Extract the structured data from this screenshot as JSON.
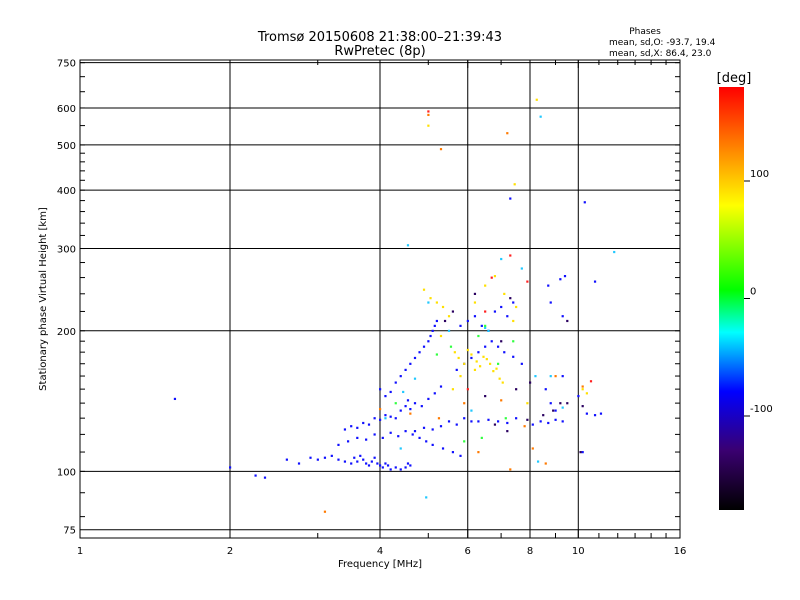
{
  "chart_data": {
    "type": "scatter",
    "title": "Tromsø 20150608 21:38:00–21:39:43",
    "subtitle": "RwPretec (8p)",
    "xlabel": "Frequency [MHz]",
    "ylabel": "Stationary phase Virtual Height [km]",
    "x_scale": "log",
    "y_scale": "log",
    "xlim": [
      1,
      16
    ],
    "ylim": [
      72,
      760
    ],
    "x_ticks": [
      1,
      2,
      4,
      6,
      8,
      10,
      16
    ],
    "y_ticks": [
      75,
      100,
      200,
      300,
      400,
      500,
      600,
      750
    ],
    "grid": true,
    "phase_stats": {
      "heading": "Phases",
      "o_line": "mean, sd,O:  -93.7, 19.4",
      "x_line": "mean, sd,X:   86.4, 23.0"
    },
    "colorbar": {
      "label": "[deg]",
      "range": [
        -180,
        180
      ],
      "ticks": [
        100,
        0,
        -100
      ]
    },
    "series": [
      {
        "color": "#1010ff",
        "phase": -100,
        "points": [
          [
            1.55,
            143
          ],
          [
            2.0,
            102
          ],
          [
            2.25,
            98
          ],
          [
            2.35,
            97
          ],
          [
            2.6,
            106
          ],
          [
            2.75,
            104
          ],
          [
            2.9,
            107
          ],
          [
            3.0,
            106
          ],
          [
            3.1,
            107
          ],
          [
            3.2,
            108
          ],
          [
            3.3,
            106
          ],
          [
            3.4,
            105
          ],
          [
            3.5,
            104
          ],
          [
            3.55,
            107
          ],
          [
            3.6,
            105
          ],
          [
            3.65,
            108
          ],
          [
            3.7,
            106
          ],
          [
            3.75,
            104
          ],
          [
            3.8,
            103
          ],
          [
            3.85,
            105
          ],
          [
            3.9,
            107
          ],
          [
            3.95,
            104
          ],
          [
            4.0,
            103
          ],
          [
            4.05,
            102
          ],
          [
            4.1,
            104
          ],
          [
            4.15,
            103
          ],
          [
            4.2,
            101
          ],
          [
            4.3,
            102
          ],
          [
            4.4,
            101
          ],
          [
            4.5,
            102
          ],
          [
            4.55,
            104
          ],
          [
            4.6,
            103
          ],
          [
            3.4,
            123
          ],
          [
            3.5,
            125
          ],
          [
            3.6,
            124
          ],
          [
            3.7,
            127
          ],
          [
            3.8,
            126
          ],
          [
            3.9,
            130
          ],
          [
            4.0,
            129
          ],
          [
            4.1,
            132
          ],
          [
            4.2,
            131
          ],
          [
            4.3,
            130
          ],
          [
            4.4,
            135
          ],
          [
            4.5,
            138
          ],
          [
            4.6,
            136
          ],
          [
            3.3,
            114
          ],
          [
            3.45,
            116
          ],
          [
            3.6,
            118
          ],
          [
            3.75,
            117
          ],
          [
            3.9,
            120
          ],
          [
            4.05,
            118
          ],
          [
            4.2,
            121
          ],
          [
            4.35,
            119
          ],
          [
            4.5,
            122
          ],
          [
            4.65,
            120
          ],
          [
            4.8,
            118
          ],
          [
            4.95,
            116
          ],
          [
            5.1,
            114
          ],
          [
            4.0,
            150
          ],
          [
            4.1,
            145
          ],
          [
            4.2,
            148
          ],
          [
            4.3,
            155
          ],
          [
            4.4,
            160
          ],
          [
            4.5,
            165
          ],
          [
            4.6,
            170
          ],
          [
            4.7,
            175
          ],
          [
            4.8,
            180
          ],
          [
            4.9,
            185
          ],
          [
            5.0,
            190
          ],
          [
            5.05,
            195
          ],
          [
            5.1,
            200
          ],
          [
            5.15,
            205
          ],
          [
            5.2,
            210
          ],
          [
            4.55,
            142
          ],
          [
            4.7,
            140
          ],
          [
            4.85,
            138
          ],
          [
            5.0,
            143
          ],
          [
            5.15,
            147
          ],
          [
            5.3,
            152
          ],
          [
            4.7,
            122
          ],
          [
            4.9,
            124
          ],
          [
            5.1,
            123
          ],
          [
            5.3,
            125
          ],
          [
            5.5,
            128
          ],
          [
            5.7,
            126
          ],
          [
            5.9,
            130
          ],
          [
            6.1,
            128
          ],
          [
            5.35,
            112
          ],
          [
            5.6,
            110
          ],
          [
            5.8,
            108
          ],
          [
            6.3,
            128
          ],
          [
            6.6,
            129
          ],
          [
            6.9,
            128
          ],
          [
            7.2,
            127
          ],
          [
            7.5,
            130
          ],
          [
            8.1,
            126
          ],
          [
            8.4,
            128
          ],
          [
            8.7,
            127
          ],
          [
            9.0,
            129
          ],
          [
            9.3,
            128
          ],
          [
            10.4,
            133
          ],
          [
            10.8,
            132
          ],
          [
            11.1,
            133
          ],
          [
            5.7,
            165
          ],
          [
            5.9,
            170
          ],
          [
            6.1,
            175
          ],
          [
            6.3,
            180
          ],
          [
            6.5,
            185
          ],
          [
            6.7,
            190
          ],
          [
            6.9,
            185
          ],
          [
            7.1,
            180
          ],
          [
            7.4,
            176
          ],
          [
            7.7,
            170
          ],
          [
            5.8,
            205
          ],
          [
            6.0,
            210
          ],
          [
            6.2,
            215
          ],
          [
            6.4,
            205
          ],
          [
            6.6,
            200
          ],
          [
            6.8,
            220
          ],
          [
            7.0,
            225
          ],
          [
            7.2,
            215
          ],
          [
            7.4,
            230
          ],
          [
            8.6,
            150
          ],
          [
            8.8,
            140
          ],
          [
            9.0,
            135
          ],
          [
            9.3,
            160
          ],
          [
            10.0,
            145
          ],
          [
            10.2,
            110
          ],
          [
            9.2,
            258
          ],
          [
            9.4,
            262
          ],
          [
            7.3,
            384
          ],
          [
            8.7,
            250
          ],
          [
            10.3,
            377
          ],
          [
            10.8,
            255
          ],
          [
            8.8,
            230
          ],
          [
            9.3,
            215
          ]
        ]
      },
      {
        "color": "#2a0060",
        "phase": -160,
        "points": [
          [
            5.4,
            210
          ],
          [
            5.6,
            220
          ],
          [
            6.2,
            240
          ],
          [
            6.5,
            145
          ],
          [
            7.0,
            190
          ],
          [
            7.3,
            235
          ],
          [
            7.5,
            150
          ],
          [
            8.0,
            155
          ],
          [
            8.5,
            132
          ],
          [
            8.9,
            135
          ],
          [
            9.5,
            140
          ],
          [
            10.2,
            138
          ],
          [
            6.8,
            126
          ],
          [
            7.2,
            122
          ],
          [
            7.9,
            129
          ],
          [
            10.1,
            110
          ],
          [
            9.2,
            140
          ],
          [
            9.5,
            210
          ]
        ]
      },
      {
        "color": "#ffe000",
        "phase": 95,
        "points": [
          [
            4.9,
            245
          ],
          [
            5.05,
            235
          ],
          [
            5.2,
            230
          ],
          [
            5.35,
            225
          ],
          [
            5.5,
            215
          ],
          [
            5.65,
            180
          ],
          [
            5.75,
            175
          ],
          [
            5.8,
            160
          ],
          [
            5.9,
            170
          ],
          [
            6.0,
            182
          ],
          [
            6.1,
            178
          ],
          [
            6.25,
            172
          ],
          [
            6.35,
            168
          ],
          [
            6.45,
            176
          ],
          [
            6.55,
            174
          ],
          [
            6.65,
            170
          ],
          [
            6.75,
            164
          ],
          [
            6.85,
            166
          ],
          [
            6.95,
            158
          ],
          [
            7.05,
            155
          ],
          [
            6.2,
            230
          ],
          [
            6.5,
            250
          ],
          [
            6.8,
            262
          ],
          [
            7.1,
            240
          ],
          [
            7.5,
            225
          ],
          [
            5.6,
            150
          ],
          [
            6.2,
            165
          ],
          [
            7.4,
            210
          ],
          [
            7.9,
            140
          ],
          [
            10.2,
            150
          ],
          [
            10.4,
            147
          ],
          [
            8.25,
            625
          ],
          [
            7.45,
            412
          ],
          [
            5.3,
            195
          ],
          [
            5.0,
            550
          ]
        ]
      },
      {
        "color": "#20c8ff",
        "phase": -35,
        "points": [
          [
            4.1,
            130
          ],
          [
            4.45,
            148
          ],
          [
            4.7,
            158
          ],
          [
            5.0,
            230
          ],
          [
            5.5,
            200
          ],
          [
            6.1,
            135
          ],
          [
            7.0,
            285
          ],
          [
            7.7,
            272
          ],
          [
            8.2,
            160
          ],
          [
            8.4,
            575
          ],
          [
            8.8,
            160
          ],
          [
            9.3,
            137
          ],
          [
            11.8,
            295
          ],
          [
            4.55,
            305
          ],
          [
            4.4,
            112
          ],
          [
            4.95,
            88
          ],
          [
            6.6,
            200
          ],
          [
            6.5,
            203
          ],
          [
            8.3,
            105
          ]
        ]
      },
      {
        "color": "#30ff40",
        "phase": 25,
        "points": [
          [
            4.3,
            140
          ],
          [
            5.55,
            185
          ],
          [
            6.3,
            195
          ],
          [
            6.5,
            205
          ],
          [
            6.9,
            170
          ],
          [
            7.15,
            130
          ],
          [
            7.4,
            190
          ],
          [
            5.2,
            178
          ],
          [
            5.9,
            116
          ],
          [
            6.4,
            118
          ]
        ]
      },
      {
        "color": "#ff7a00",
        "phase": 145,
        "points": [
          [
            5.0,
            580
          ],
          [
            5.3,
            490
          ],
          [
            7.2,
            530
          ],
          [
            4.6,
            133
          ],
          [
            5.25,
            130
          ],
          [
            6.3,
            110
          ],
          [
            7.0,
            142
          ],
          [
            7.3,
            101
          ],
          [
            7.8,
            125
          ],
          [
            8.6,
            104
          ],
          [
            9.0,
            160
          ],
          [
            10.2,
            152
          ],
          [
            3.1,
            82
          ],
          [
            4.0,
            136
          ],
          [
            5.9,
            140
          ],
          [
            8.1,
            112
          ]
        ]
      },
      {
        "color": "#ff2020",
        "phase": 175,
        "points": [
          [
            5.0,
            590
          ],
          [
            6.5,
            220
          ],
          [
            6.0,
            150
          ],
          [
            6.7,
            260
          ],
          [
            7.3,
            290
          ],
          [
            7.9,
            255
          ],
          [
            10.6,
            156
          ]
        ]
      }
    ]
  }
}
